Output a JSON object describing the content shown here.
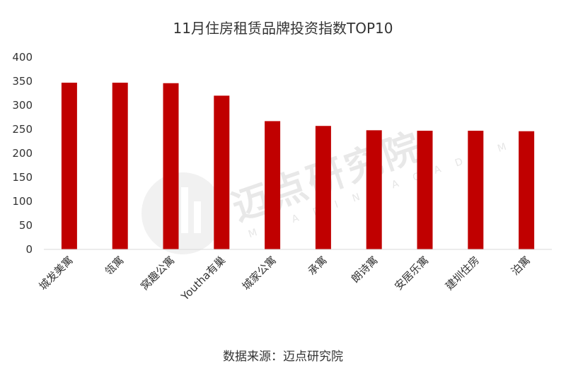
{
  "chart_data": {
    "type": "bar",
    "title": "11月住房租赁品牌投资指数TOP10",
    "categories": [
      "城发美寓",
      "瓴寓",
      "窝趣公寓",
      "Youtha有巢",
      "城家公寓",
      "承寓",
      "朗诗寓",
      "安居乐寓",
      "建圳住房",
      "泊寓"
    ],
    "values": [
      347,
      347,
      346,
      320,
      267,
      257,
      248,
      247,
      247,
      246
    ],
    "ylim": [
      0,
      400
    ],
    "yticks": [
      0,
      50,
      100,
      150,
      200,
      250,
      300,
      350,
      400
    ],
    "xlabel": "",
    "ylabel": "",
    "grid": false,
    "legend": "none",
    "bar_color": "#c00000",
    "source": "数据来源：迈点研究院",
    "watermark": {
      "text": "迈点研究院",
      "subtext": "MEADIN ACADEMY"
    }
  }
}
